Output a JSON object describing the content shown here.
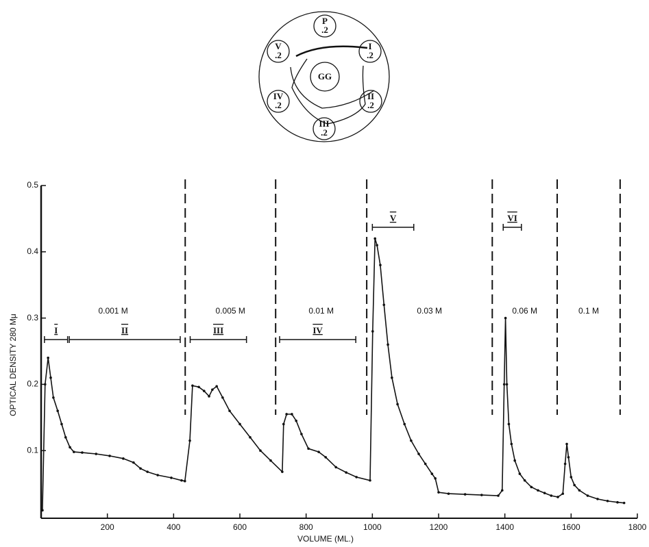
{
  "plate": {
    "center": "GG",
    "wells": [
      {
        "label": "P",
        "dose": ".2"
      },
      {
        "label": "I",
        "dose": ".2"
      },
      {
        "label": "II",
        "dose": ".2"
      },
      {
        "label": "III",
        "dose": ".2"
      },
      {
        "label": "IV",
        "dose": ".2"
      },
      {
        "label": "V",
        "dose": ".2"
      }
    ]
  },
  "chart_data": {
    "type": "line",
    "xlabel": "VOLUME (ML.)",
    "ylabel": "OPTICAL DENSITY 280 Mμ",
    "color": "#111111",
    "xlim": [
      0,
      1800
    ],
    "xticks": [
      200,
      400,
      600,
      800,
      1000,
      1200,
      1400,
      1600,
      1800
    ],
    "ylim": [
      0,
      0.5
    ],
    "yticks": [
      0.1,
      0.2,
      0.3,
      0.4,
      0.5
    ],
    "boundaries": [
      435,
      708,
      983,
      1362,
      1558,
      1748
    ],
    "buffers": [
      "0.001 M",
      "0.005 M",
      "0.01 M",
      "0.03 M",
      "0.06 M",
      "0.1 M"
    ],
    "fractions": [
      {
        "label": "I",
        "from": 10,
        "to": 80
      },
      {
        "label": "II",
        "from": 85,
        "to": 420
      },
      {
        "label": "III",
        "from": 450,
        "to": 620
      },
      {
        "label": "IV",
        "from": 720,
        "to": 950
      },
      {
        "label": "V",
        "from": 1000,
        "to": 1125
      },
      {
        "label": "VI",
        "from": 1395,
        "to": 1450
      }
    ],
    "x": [
      4,
      12,
      21,
      29,
      37,
      50,
      62,
      74,
      87,
      99,
      124,
      166,
      207,
      248,
      279,
      300,
      321,
      352,
      393,
      424,
      434,
      449,
      457,
      476,
      492,
      507,
      517,
      530,
      548,
      569,
      600,
      631,
      662,
      693,
      728,
      732,
      741,
      757,
      770,
      786,
      807,
      838,
      859,
      890,
      921,
      952,
      993,
      1001,
      1008,
      1014,
      1024,
      1035,
      1047,
      1059,
      1076,
      1097,
      1117,
      1140,
      1160,
      1180,
      1190,
      1200,
      1230,
      1280,
      1330,
      1380,
      1392,
      1398,
      1402,
      1406,
      1412,
      1420,
      1430,
      1445,
      1460,
      1480,
      1500,
      1520,
      1540,
      1560,
      1575,
      1582,
      1587,
      1592,
      1600,
      1610,
      1625,
      1650,
      1680,
      1710,
      1740,
      1760
    ],
    "values": [
      0.01,
      0.2,
      0.24,
      0.21,
      0.18,
      0.16,
      0.14,
      0.12,
      0.105,
      0.098,
      0.097,
      0.095,
      0.092,
      0.088,
      0.082,
      0.073,
      0.068,
      0.063,
      0.059,
      0.055,
      0.054,
      0.115,
      0.198,
      0.196,
      0.19,
      0.182,
      0.192,
      0.197,
      0.18,
      0.16,
      0.14,
      0.12,
      0.1,
      0.085,
      0.068,
      0.14,
      0.155,
      0.155,
      0.145,
      0.125,
      0.103,
      0.098,
      0.09,
      0.075,
      0.067,
      0.06,
      0.055,
      0.28,
      0.42,
      0.41,
      0.38,
      0.32,
      0.26,
      0.21,
      0.17,
      0.14,
      0.115,
      0.095,
      0.08,
      0.065,
      0.058,
      0.037,
      0.035,
      0.034,
      0.033,
      0.032,
      0.04,
      0.2,
      0.3,
      0.2,
      0.14,
      0.11,
      0.085,
      0.065,
      0.055,
      0.045,
      0.04,
      0.036,
      0.032,
      0.03,
      0.035,
      0.08,
      0.11,
      0.09,
      0.06,
      0.048,
      0.04,
      0.032,
      0.027,
      0.024,
      0.022,
      0.021
    ]
  }
}
